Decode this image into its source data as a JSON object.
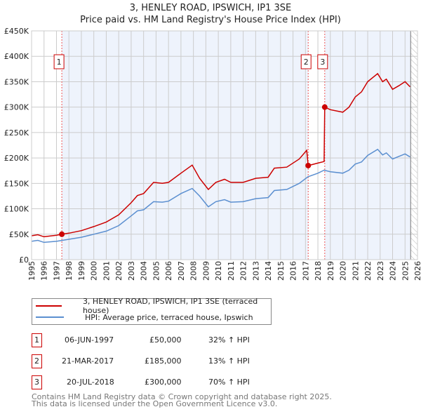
{
  "title": [
    "3, HENLEY ROAD, IPSWICH, IP1 3SE",
    "Price paid vs. HM Land Registry's House Price Index (HPI)"
  ],
  "colors": {
    "property": "#cc0000",
    "hpi": "#5b8fd0",
    "shade": "#eef3fc",
    "grid": "#cccccc"
  },
  "chart_data": {
    "type": "line",
    "title": "3, HENLEY ROAD, IPSWICH, IP1 3SE - Price paid vs. HM Land Registry's House Price Index (HPI)",
    "xlim": [
      1995,
      2026
    ],
    "ylim": [
      0,
      450000
    ],
    "x_ticks": [
      1995,
      1996,
      1997,
      1998,
      1999,
      2000,
      2001,
      2002,
      2003,
      2004,
      2005,
      2006,
      2007,
      2008,
      2009,
      2010,
      2011,
      2012,
      2013,
      2014,
      2015,
      2016,
      2017,
      2018,
      2019,
      2020,
      2021,
      2022,
      2023,
      2024,
      2025,
      2026
    ],
    "y_ticks": [
      {
        "v": 0,
        "label": "£0"
      },
      {
        "v": 50000,
        "label": "£50K"
      },
      {
        "v": 100000,
        "label": "£100K"
      },
      {
        "v": 150000,
        "label": "£150K"
      },
      {
        "v": 200000,
        "label": "£200K"
      },
      {
        "v": 250000,
        "label": "£250K"
      },
      {
        "v": 300000,
        "label": "£300K"
      },
      {
        "v": 350000,
        "label": "£350K"
      },
      {
        "v": 400000,
        "label": "£400K"
      },
      {
        "v": 450000,
        "label": "£450K"
      }
    ],
    "grid": true,
    "series": [
      {
        "name": "3, HENLEY ROAD, IPSWICH, IP1 3SE (terraced house)",
        "color": "#cc0000",
        "x": [
          1995,
          1995.5,
          1996,
          1997,
          1997.43,
          1998,
          1999,
          2000,
          2001,
          2002,
          2003,
          2003.5,
          2004,
          2004.8,
          2005.5,
          2006,
          2007,
          2007.9,
          2008.5,
          2009.2,
          2009.8,
          2010.5,
          2011,
          2012,
          2013,
          2014,
          2014.5,
          2015.5,
          2016.5,
          2017.1,
          2017.22,
          2018,
          2018.5,
          2018.55,
          2019,
          2020,
          2020.5,
          2021,
          2021.5,
          2022,
          2022.8,
          2023.2,
          2023.5,
          2024,
          2024.5,
          2025,
          2025.4
        ],
        "y": [
          47000,
          49000,
          45000,
          48000,
          50000,
          52000,
          57000,
          65000,
          74000,
          88000,
          112000,
          126000,
          130000,
          152000,
          150000,
          152000,
          170000,
          186000,
          160000,
          138000,
          152000,
          158000,
          152000,
          152000,
          160000,
          162000,
          180000,
          182000,
          198000,
          215000,
          185000,
          190000,
          193000,
          300000,
          295000,
          290000,
          300000,
          320000,
          330000,
          350000,
          366000,
          350000,
          355000,
          335000,
          342000,
          350000,
          340000
        ]
      },
      {
        "name": "HPI: Average price, terraced house, Ipswich",
        "color": "#5b8fd0",
        "x": [
          1995,
          1995.5,
          1996,
          1997,
          1998,
          1999,
          2000,
          2001,
          2002,
          2003,
          2003.5,
          2004,
          2004.8,
          2005.5,
          2006,
          2007,
          2007.9,
          2008.5,
          2009.2,
          2009.8,
          2010.5,
          2011,
          2012,
          2013,
          2014,
          2014.5,
          2015.5,
          2016.5,
          2017.2,
          2018,
          2018.5,
          2019,
          2020,
          2020.5,
          2021,
          2021.5,
          2022,
          2022.8,
          2023.2,
          2023.5,
          2024,
          2024.5,
          2025,
          2025.4
        ],
        "y": [
          36000,
          38000,
          34000,
          36000,
          40000,
          44000,
          50000,
          56000,
          67000,
          86000,
          96000,
          98000,
          114000,
          113000,
          115000,
          130000,
          140000,
          125000,
          104000,
          114000,
          118000,
          113000,
          114000,
          120000,
          122000,
          136000,
          138000,
          150000,
          163000,
          170000,
          176000,
          173000,
          170000,
          176000,
          188000,
          192000,
          205000,
          217000,
          206000,
          210000,
          198000,
          203000,
          208000,
          202000
        ]
      }
    ],
    "sales": [
      {
        "n": "1",
        "x": 1997.43,
        "y": 50000
      },
      {
        "n": "2",
        "x": 2017.22,
        "y": 185000
      },
      {
        "n": "3",
        "x": 2018.55,
        "y": 300000
      }
    ],
    "hatched_from": 2025.45,
    "legend": "below"
  },
  "legend": {
    "property": "3, HENLEY ROAD, IPSWICH, IP1 3SE (terraced house)",
    "hpi": "HPI: Average price, terraced house, Ipswich"
  },
  "sales_table": [
    {
      "n": "1",
      "date": "06-JUN-1997",
      "price": "£50,000",
      "hpi": "32% ↑ HPI"
    },
    {
      "n": "2",
      "date": "21-MAR-2017",
      "price": "£185,000",
      "hpi": "13% ↑ HPI"
    },
    {
      "n": "3",
      "date": "20-JUL-2018",
      "price": "£300,000",
      "hpi": "70% ↑ HPI"
    }
  ],
  "footer": [
    "Contains HM Land Registry data © Crown copyright and database right 2025.",
    "This data is licensed under the Open Government Licence v3.0."
  ]
}
